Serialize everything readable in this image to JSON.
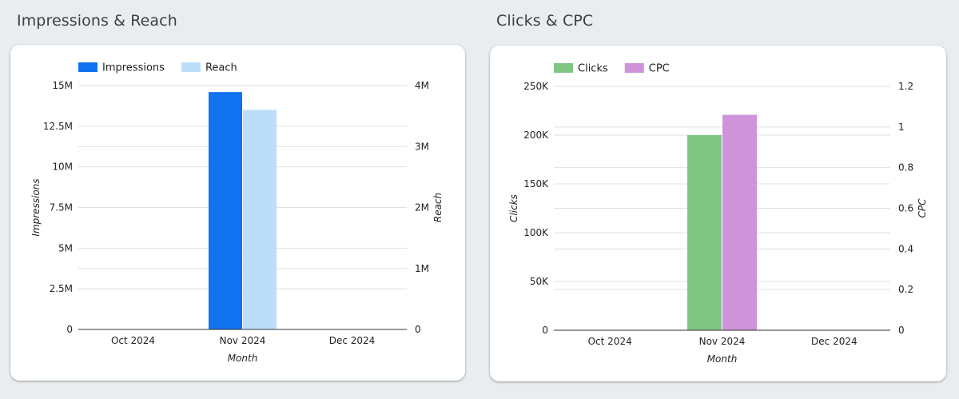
{
  "charts": [
    {
      "section_title": "Impressions & Reach",
      "chart_data": {
        "type": "bar",
        "title": "Impressions & Reach",
        "categories": [
          "Oct 2024",
          "Nov 2024",
          "Dec 2024"
        ],
        "xlabel": "Month",
        "series": [
          {
            "name": "Impressions",
            "axis": "left",
            "color": "#1172f0",
            "values": [
              0,
              14600000,
              0
            ]
          },
          {
            "name": "Reach",
            "axis": "right",
            "color": "#bbdefb",
            "values": [
              0,
              3600000,
              0
            ]
          }
        ],
        "y_left": {
          "label": "Impressions",
          "lim": [
            0,
            15000000
          ],
          "ticks": [
            0,
            2500000,
            5000000,
            7500000,
            10000000,
            12500000,
            15000000
          ],
          "tick_labels": [
            "0",
            "2.5M",
            "5M",
            "7.5M",
            "10M",
            "12.5M",
            "15M"
          ]
        },
        "y_right": {
          "label": "Reach",
          "lim": [
            0,
            4000000
          ],
          "ticks": [
            0,
            1000000,
            2000000,
            3000000,
            4000000
          ],
          "tick_labels": [
            "0",
            "1M",
            "2M",
            "3M",
            "4M"
          ]
        },
        "grid": true,
        "legend": "top-left"
      }
    },
    {
      "section_title": "Clicks & CPC",
      "chart_data": {
        "type": "bar",
        "title": "Clicks & CPC",
        "categories": [
          "Oct 2024",
          "Nov 2024",
          "Dec 2024"
        ],
        "xlabel": "Month",
        "series": [
          {
            "name": "Clicks",
            "axis": "left",
            "color": "#81c784",
            "values": [
              0,
              200000,
              0
            ]
          },
          {
            "name": "CPC",
            "axis": "right",
            "color": "#ce93d8",
            "values": [
              0,
              1.06,
              0
            ]
          }
        ],
        "y_left": {
          "label": "Clicks",
          "lim": [
            0,
            250000
          ],
          "ticks": [
            0,
            50000,
            100000,
            150000,
            200000,
            250000
          ],
          "tick_labels": [
            "0",
            "50K",
            "100K",
            "150K",
            "200K",
            "250K"
          ]
        },
        "y_right": {
          "label": "CPC",
          "lim": [
            0,
            1.2
          ],
          "ticks": [
            0,
            0.2,
            0.4,
            0.6,
            0.8,
            1,
            1.2
          ],
          "tick_labels": [
            "0",
            "0.2",
            "0.4",
            "0.6",
            "0.8",
            "1",
            "1.2"
          ]
        },
        "grid": true,
        "legend": "top-left"
      }
    }
  ]
}
